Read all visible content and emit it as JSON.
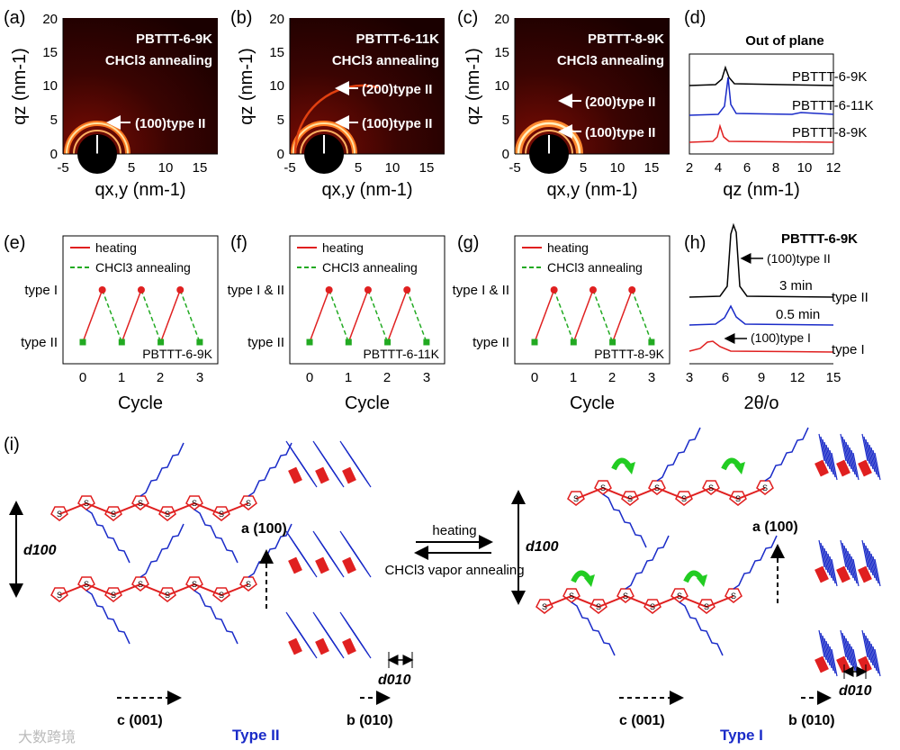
{
  "panel_labels": [
    "(a)",
    "(b)",
    "(c)",
    "(d)",
    "(e)",
    "(f)",
    "(g)",
    "(h)",
    "(i)"
  ],
  "giwaxs": [
    {
      "sample": "PBTTT-6-9K",
      "condition": "CHCl3 annealing",
      "peaks": [
        "(100)type II"
      ]
    },
    {
      "sample": "PBTTT-6-11K",
      "condition": "CHCl3 annealing",
      "peaks": [
        "(200)type II",
        "(100)type II"
      ]
    },
    {
      "sample": "PBTTT-8-9K",
      "condition": "CHCl3 annealing",
      "peaks": [
        "(200)type II",
        "(100)type II"
      ]
    }
  ],
  "giwaxs_axes": {
    "xlabel": "qx,y (nm-1)",
    "ylabel": "qz (nm-1)",
    "xticks": [
      "-5",
      "0",
      "5",
      "10",
      "15"
    ],
    "yticks": [
      "0",
      "5",
      "10",
      "15",
      "20"
    ]
  },
  "panel_d": {
    "title": "Out of plane",
    "series": [
      "PBTTT-6-9K",
      "PBTTT-6-11K",
      "PBTTT-8-9K"
    ],
    "colors": [
      "#000000",
      "#1a2bc8",
      "#e02020"
    ],
    "xlabel": "qz (nm-1)",
    "xticks": [
      "2",
      "4",
      "6",
      "8",
      "10",
      "12"
    ]
  },
  "cycle_panels": [
    {
      "sample": "PBTTT-6-9K",
      "top_label": "type I"
    },
    {
      "sample": "PBTTT-6-11K",
      "top_label": "type I & II"
    },
    {
      "sample": "PBTTT-8-9K",
      "top_label": "type I & II"
    }
  ],
  "cycle_common": {
    "legend_heating": "heating",
    "legend_annealing": "CHCl3 annealing",
    "bottom_label": "type II",
    "xlabel": "Cycle",
    "xticks": [
      "0",
      "1",
      "2",
      "3"
    ]
  },
  "panel_h": {
    "title": "PBTTT-6-9K",
    "peak_upper": "(100)type II",
    "peak_lower": "(100)type I",
    "labels": [
      "3 min",
      "0.5 min"
    ],
    "right_labels": [
      "type II",
      "type I"
    ],
    "xlabel": "2θ/o",
    "xticks": [
      "3",
      "6",
      "9",
      "12",
      "15"
    ]
  },
  "scheme": {
    "d100": "d100",
    "d010": "d010",
    "a_axis": "a (100)",
    "b_axis": "b (010)",
    "c_axis": "c (001)",
    "type_left": "Type II",
    "type_right": "Type I",
    "arrow_top": "heating",
    "arrow_bottom": "CHCl3 vapor annealing",
    "atom_s": "S"
  },
  "watermark": "大数跨境",
  "colors": {
    "polymer": "#e02020",
    "sidechain": "#1a2bc8",
    "arrow_green": "#22cc22"
  }
}
